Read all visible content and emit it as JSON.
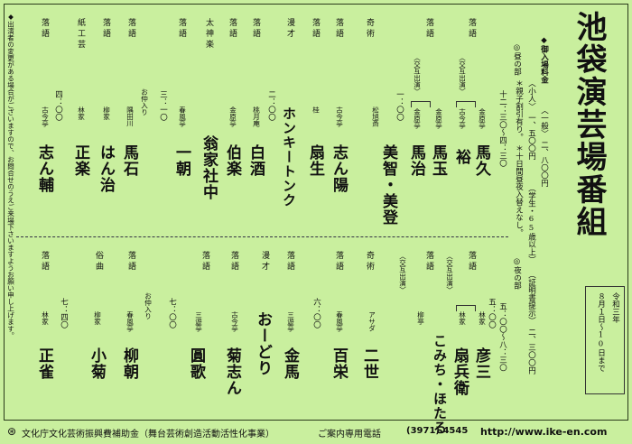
{
  "title": "池袋演芸場番組",
  "period": {
    "line1": "令和三年",
    "line2": "８月１日～10日まで"
  },
  "notice": "◆出演者の変更がある場合がございますので、お問合せのうえご来場下さいますようお願い申し上げます。",
  "fee": {
    "heading": "◆御入場料金",
    "general": "〈一般〉　二、八〇〇円",
    "child": "〈小人〉　一、五〇〇円",
    "senior_note": "（学生・65歳以上）",
    "senior_price": "（証明書提示）　二、三〇〇円",
    "note1": "＊親子割引有り。",
    "note2": "＊十日間昼夜入替えなし。"
  },
  "day": {
    "label": "◎昼の部",
    "time": "十二：三〇～四：三〇",
    "programs": [
      {
        "cat": "落語",
        "name": "馬久",
        "house": "金原亭"
      },
      {
        "cat": "落語",
        "name": "裕",
        "house": "古今亭",
        "note": "〈交互出演〉"
      },
      {
        "cat": "落語",
        "name": "馬玉",
        "house": "金原亭"
      },
      {
        "cat": "落語",
        "name": "馬治",
        "house": "金原亭",
        "note": "〈交互出演〉",
        "time": "一：〇〇"
      },
      {
        "cat": "奇術",
        "name": "美智・美登",
        "house": "松旭斎"
      },
      {
        "cat": "落語",
        "name": "志ん陽",
        "house": "古今亭"
      },
      {
        "cat": "落語",
        "name": "扇生",
        "house": "桂"
      },
      {
        "cat": "漫才",
        "name": "ホンキートンク",
        "time": "二：〇〇"
      },
      {
        "cat": "落語",
        "name": "白酒",
        "house": "桃月庵"
      },
      {
        "cat": "落語",
        "name": "伯楽",
        "house": "金原亭"
      },
      {
        "cat": "太神楽",
        "name": "翁家社中"
      },
      {
        "cat": "落語",
        "name": "一朝",
        "house": "春風亭",
        "time": "三：一〇"
      },
      {
        "cat": "落語",
        "name": "馬石",
        "house": "隅田川",
        "note": "お仲入り"
      },
      {
        "cat": "落語",
        "name": "はん治",
        "house": "柳家"
      },
      {
        "cat": "紙工芸",
        "name": "正楽",
        "house": "林家"
      },
      {
        "cat": "落語",
        "name": "志ん輔",
        "house": "古今亭",
        "time": "四：〇〇"
      }
    ]
  },
  "night": {
    "label": "◎夜の部",
    "time": "五：〇〇～八：三〇",
    "programs": [
      {
        "cat": "落語",
        "name": "彦三",
        "house": "林家",
        "time": "五：〇〇"
      },
      {
        "cat": "落語",
        "name": "扇兵衛",
        "house": "林家",
        "note": "〈交互出演〉"
      },
      {
        "cat": "落語",
        "name": "こみち・ほたる",
        "house": "柳亭",
        "note": "〈交互出演〉"
      },
      {
        "cat": "奇術",
        "name": "二世",
        "house": "アサダ"
      },
      {
        "cat": "落語",
        "name": "百栄",
        "house": "春風亭",
        "time": "六：〇〇"
      },
      {
        "cat": "落語",
        "name": "金馬",
        "house": "三遊亭"
      },
      {
        "cat": "漫才",
        "name": "おーどり"
      },
      {
        "cat": "落語",
        "name": "菊志ん",
        "house": "古今亭"
      },
      {
        "cat": "落語",
        "name": "圓歌",
        "house": "三遊亭",
        "time": "七：〇〇"
      },
      {
        "cat": "落語",
        "name": "柳朝",
        "house": "春風亭",
        "note": "お仲入り"
      },
      {
        "cat": "俗曲",
        "name": "小菊",
        "house": "柳家"
      },
      {
        "cat": "落語",
        "name": "正雀",
        "house": "林家",
        "time": "七：四〇"
      }
    ]
  },
  "footer": {
    "sponsor": "文化庁文化芸術振興費補助金（舞台芸術創造活動活性化事業）",
    "phone_label": "ご案内専用電話",
    "phone": "(3971) 4545",
    "url": "http://www.ike-en.com"
  }
}
